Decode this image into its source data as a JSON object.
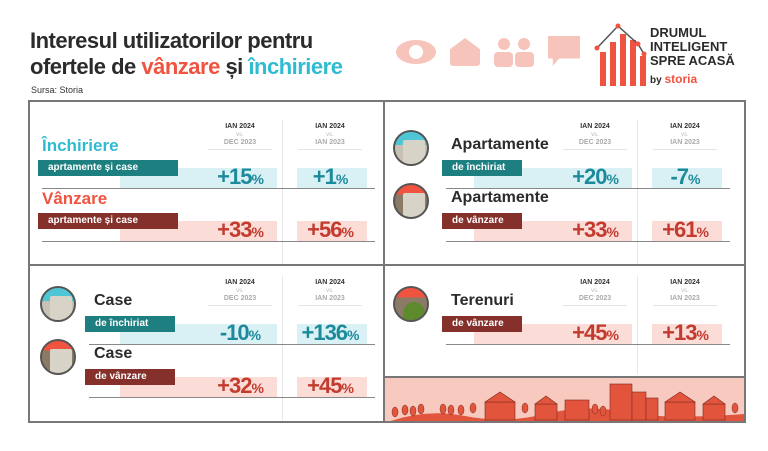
{
  "header": {
    "title_line1": "Interesul utilizatorilor pentru",
    "title_line2_prefix": "ofertele de ",
    "title_sale": "vânzare",
    "title_and": " și ",
    "title_rent": "închiriere",
    "source": "Sursa: Storia",
    "icons": [
      "eye-icon",
      "house-icon",
      "people-icon",
      "chat-bubble-icon"
    ],
    "logo_lines": [
      "DRUMUL",
      "INTELIGENT",
      "SPRE ACASĂ"
    ],
    "logo_by": "by",
    "logo_brand": "storia"
  },
  "columns": {
    "current": "IAN 2024",
    "vs": "vs.",
    "col1_prev": "DEC 2023",
    "col2_prev": "IAN 2023"
  },
  "colors": {
    "rent_label": "#1e7f80",
    "rent_bar": "#d9f1f5",
    "rent_value": "#1d8a9c",
    "sale_label": "#85302a",
    "sale_bar": "#fbdcd6",
    "sale_value": "#c23b2e",
    "title_rent": "#2fbcd0",
    "title_sale": "#f0533f"
  },
  "panels": [
    {
      "id": "overall",
      "rows": [
        {
          "title": "Închiriere",
          "label": "aprtamente și case",
          "type": "rent",
          "colored_title": true,
          "mom": "+15",
          "yoy": "+1"
        },
        {
          "title": "Vânzare",
          "label": "aprtamente și case",
          "type": "sale",
          "colored_title": true,
          "mom": "+33",
          "yoy": "+56"
        }
      ]
    },
    {
      "id": "apartments",
      "rows": [
        {
          "title": "Apartamente",
          "label": "de închiriat",
          "type": "rent",
          "image": "apartment-building-image",
          "mom": "+20",
          "yoy": "-7"
        },
        {
          "title": "Apartamente",
          "label": "de vânzare",
          "type": "sale",
          "image": "apartment-building-image",
          "mom": "+33",
          "yoy": "+61"
        }
      ]
    },
    {
      "id": "houses",
      "rows": [
        {
          "title": "Case",
          "label": "de închiriat",
          "type": "rent",
          "image": "house-image",
          "mom": "-10",
          "yoy": "+136"
        },
        {
          "title": "Case",
          "label": "de vânzare",
          "type": "sale",
          "image": "house-image",
          "mom": "+32",
          "yoy": "+45"
        }
      ]
    },
    {
      "id": "land",
      "rows": [
        {
          "title": "Terenuri",
          "label": "de vânzare",
          "type": "sale",
          "image": "land-hills-image",
          "mom": "+45",
          "yoy": "+13"
        }
      ]
    }
  ],
  "unit": "%"
}
